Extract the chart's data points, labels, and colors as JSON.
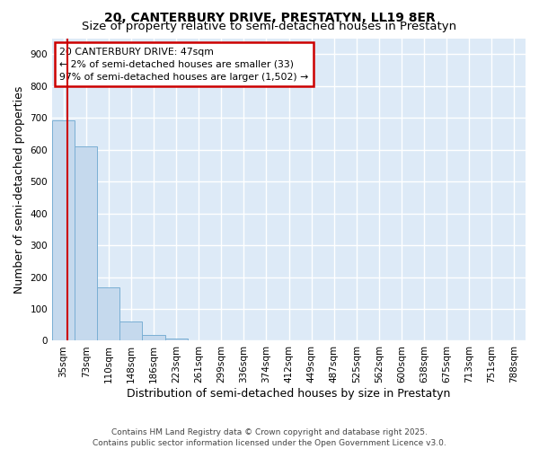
{
  "title": "20, CANTERBURY DRIVE, PRESTATYN, LL19 8ER",
  "subtitle": "Size of property relative to semi-detached houses in Prestatyn",
  "xlabel": "Distribution of semi-detached houses by size in Prestatyn",
  "ylabel": "Number of semi-detached properties",
  "categories": [
    "35sqm",
    "73sqm",
    "110sqm",
    "148sqm",
    "186sqm",
    "223sqm",
    "261sqm",
    "299sqm",
    "336sqm",
    "374sqm",
    "412sqm",
    "449sqm",
    "487sqm",
    "525sqm",
    "562sqm",
    "600sqm",
    "638sqm",
    "675sqm",
    "713sqm",
    "751sqm",
    "788sqm"
  ],
  "values": [
    693,
    609,
    168,
    60,
    17,
    8,
    0,
    0,
    0,
    0,
    0,
    0,
    0,
    0,
    0,
    0,
    0,
    0,
    0,
    0,
    0
  ],
  "bar_color": "#c5d9ed",
  "bar_edge_color": "#7aafd4",
  "background_color": "#ddeaf7",
  "grid_color": "#ffffff",
  "annotation_text": "20 CANTERBURY DRIVE: 47sqm\n← 2% of semi-detached houses are smaller (33)\n97% of semi-detached houses are larger (1,502) →",
  "annotation_box_facecolor": "#ffffff",
  "annotation_box_edgecolor": "#cc0000",
  "vline_color": "#cc0000",
  "vline_x": 0.18,
  "ylim": [
    0,
    950
  ],
  "yticks": [
    0,
    100,
    200,
    300,
    400,
    500,
    600,
    700,
    800,
    900
  ],
  "title_fontsize": 10,
  "subtitle_fontsize": 9.5,
  "xlabel_fontsize": 9,
  "ylabel_fontsize": 9,
  "tick_fontsize": 7.5,
  "annotation_fontsize": 7.8,
  "footnote": "Contains HM Land Registry data © Crown copyright and database right 2025.\nContains public sector information licensed under the Open Government Licence v3.0.",
  "footnote_fontsize": 6.5
}
